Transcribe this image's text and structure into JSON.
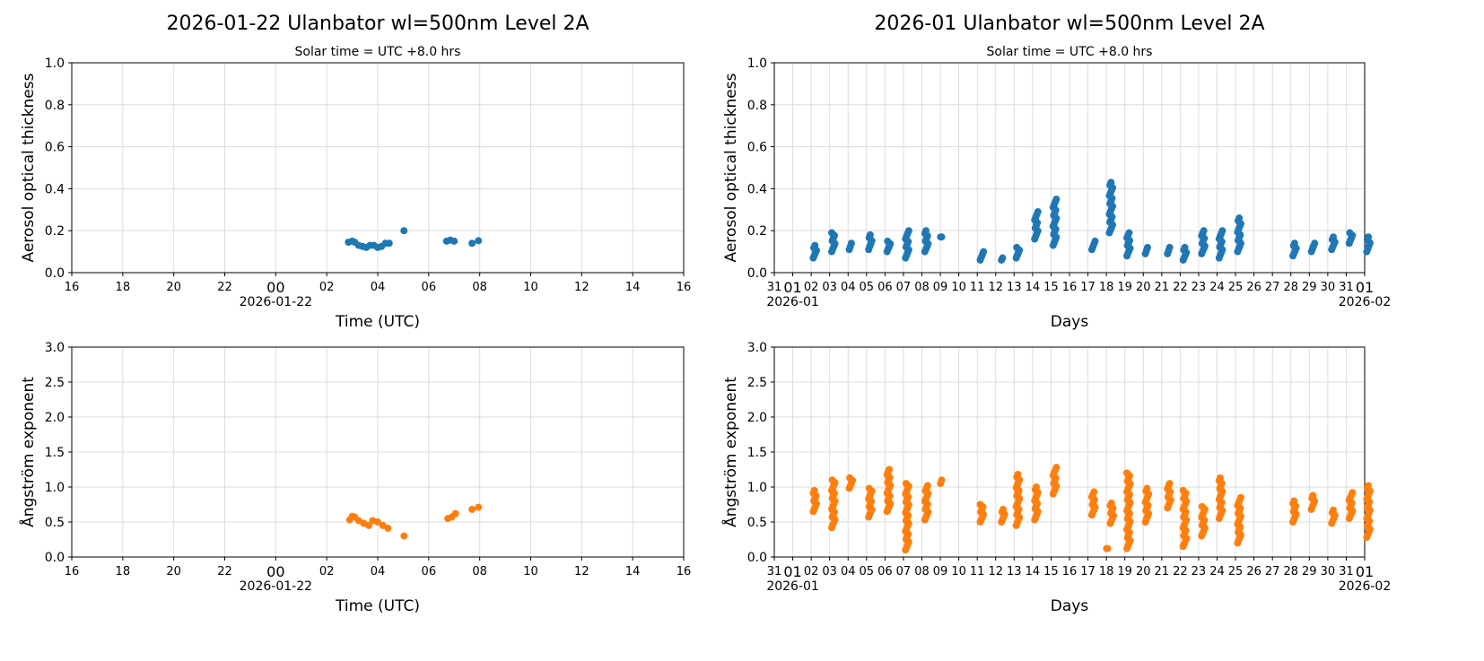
{
  "chart_data": [
    {
      "type": "scatter",
      "title": "2026-01-22  Ulanbator  wl=500nm  Level 2A",
      "subtitle": "Solar time = UTC +8.0 hrs",
      "xlabel": "Time (UTC)",
      "ylabel": "Aerosol optical thickness",
      "xlim": [
        "2026-01-21 16:00",
        "2026-01-22 16:00"
      ],
      "ylim": [
        0,
        1.0
      ],
      "yticks": [
        "0.0",
        "0.2",
        "0.4",
        "0.6",
        "0.8",
        "1.0"
      ],
      "xticks": [
        "16",
        "18",
        "20",
        "22",
        "00",
        "02",
        "04",
        "06",
        "08",
        "10",
        "12",
        "14",
        "16"
      ],
      "xdate_label": "2026-01-22",
      "grid": true,
      "color": "#1f77b4",
      "points_hours_utc": [
        [
          2.85,
          0.145
        ],
        [
          3.0,
          0.15
        ],
        [
          3.1,
          0.145
        ],
        [
          3.25,
          0.13
        ],
        [
          3.4,
          0.125
        ],
        [
          3.55,
          0.12
        ],
        [
          3.7,
          0.13
        ],
        [
          3.85,
          0.13
        ],
        [
          4.0,
          0.12
        ],
        [
          4.15,
          0.125
        ],
        [
          4.3,
          0.14
        ],
        [
          4.45,
          0.14
        ],
        [
          5.03,
          0.2
        ],
        [
          6.7,
          0.15
        ],
        [
          6.85,
          0.155
        ],
        [
          7.0,
          0.15
        ],
        [
          7.7,
          0.14
        ],
        [
          7.95,
          0.152
        ]
      ]
    },
    {
      "type": "scatter",
      "title": "2026-01  Ulanbator  wl=500nm  Level 2A",
      "subtitle": "Solar time = UTC +8.0 hrs",
      "xlabel": "Days",
      "ylabel": "Aerosol optical thickness",
      "xlim": [
        "2025-12-31",
        "2026-02-01"
      ],
      "ylim": [
        0,
        1.0
      ],
      "yticks": [
        "0.0",
        "0.2",
        "0.4",
        "0.6",
        "0.8",
        "1.0"
      ],
      "xticks": [
        "31",
        "01",
        "02",
        "03",
        "04",
        "05",
        "06",
        "07",
        "08",
        "09",
        "10",
        "11",
        "12",
        "13",
        "14",
        "15",
        "16",
        "17",
        "18",
        "19",
        "20",
        "21",
        "22",
        "23",
        "24",
        "25",
        "26",
        "27",
        "28",
        "29",
        "30",
        "31",
        "01"
      ],
      "xdate_labels": [
        "2026-01",
        "2026-02"
      ],
      "grid": true,
      "color": "#1f77b4",
      "daily_clusters": [
        [
          1.2,
          0.07,
          0.13
        ],
        [
          2.2,
          0.1,
          0.19
        ],
        [
          3.15,
          0.11,
          0.14
        ],
        [
          4.2,
          0.11,
          0.18
        ],
        [
          5.2,
          0.1,
          0.15
        ],
        [
          6.2,
          0.07,
          0.2
        ],
        [
          7.25,
          0.1,
          0.2
        ],
        [
          8.1,
          0.17,
          0.17
        ],
        [
          10.25,
          0.06,
          0.1
        ],
        [
          11.4,
          0.06,
          0.07
        ],
        [
          12.2,
          0.07,
          0.12
        ],
        [
          13.2,
          0.16,
          0.29
        ],
        [
          14.2,
          0.13,
          0.35
        ],
        [
          16.3,
          0.11,
          0.15
        ],
        [
          17.25,
          0.19,
          0.43
        ],
        [
          18.2,
          0.08,
          0.19
        ],
        [
          19.2,
          0.09,
          0.12
        ],
        [
          20.4,
          0.09,
          0.12
        ],
        [
          21.25,
          0.06,
          0.12
        ],
        [
          22.25,
          0.09,
          0.2
        ],
        [
          23.2,
          0.07,
          0.2
        ],
        [
          24.2,
          0.1,
          0.26
        ],
        [
          27.2,
          0.08,
          0.14
        ],
        [
          28.2,
          0.1,
          0.14
        ],
        [
          29.3,
          0.11,
          0.17
        ],
        [
          30.25,
          0.14,
          0.19
        ],
        [
          31.2,
          0.1,
          0.17
        ]
      ]
    },
    {
      "type": "scatter",
      "xlabel": "Time (UTC)",
      "ylabel": "Ångström exponent",
      "xlim": [
        "2026-01-21 16:00",
        "2026-01-22 16:00"
      ],
      "ylim": [
        0,
        3.0
      ],
      "yticks": [
        "0.0",
        "0.5",
        "1.0",
        "1.5",
        "2.0",
        "2.5",
        "3.0"
      ],
      "xticks": [
        "16",
        "18",
        "20",
        "22",
        "00",
        "02",
        "04",
        "06",
        "08",
        "10",
        "12",
        "14",
        "16"
      ],
      "xdate_label": "2026-01-22",
      "grid": true,
      "color": "#ff7f0e",
      "points_hours_utc": [
        [
          2.9,
          0.53
        ],
        [
          3.0,
          0.58
        ],
        [
          3.1,
          0.57
        ],
        [
          3.25,
          0.52
        ],
        [
          3.45,
          0.48
        ],
        [
          3.65,
          0.45
        ],
        [
          3.8,
          0.52
        ],
        [
          4.0,
          0.5
        ],
        [
          4.2,
          0.45
        ],
        [
          4.4,
          0.41
        ],
        [
          5.03,
          0.3
        ],
        [
          6.75,
          0.55
        ],
        [
          6.9,
          0.57
        ],
        [
          7.05,
          0.62
        ],
        [
          7.7,
          0.68
        ],
        [
          7.95,
          0.71
        ]
      ]
    },
    {
      "type": "scatter",
      "xlabel": "Days",
      "ylabel": "Ångström exponent",
      "xlim": [
        "2025-12-31",
        "2026-02-01"
      ],
      "ylim": [
        0,
        3.0
      ],
      "yticks": [
        "0.0",
        "0.5",
        "1.0",
        "1.5",
        "2.0",
        "2.5",
        "3.0"
      ],
      "xticks": [
        "31",
        "01",
        "02",
        "03",
        "04",
        "05",
        "06",
        "07",
        "08",
        "09",
        "10",
        "11",
        "12",
        "13",
        "14",
        "15",
        "16",
        "17",
        "18",
        "19",
        "20",
        "21",
        "22",
        "23",
        "24",
        "25",
        "26",
        "27",
        "28",
        "29",
        "30",
        "31",
        "01"
      ],
      "xdate_labels": [
        "2026-01",
        "2026-02"
      ],
      "grid": true,
      "color": "#ff7f0e",
      "daily_clusters": [
        [
          1.2,
          0.65,
          0.95
        ],
        [
          2.2,
          0.42,
          1.1
        ],
        [
          3.15,
          0.98,
          1.13
        ],
        [
          4.2,
          0.57,
          0.98
        ],
        [
          5.2,
          0.65,
          1.25
        ],
        [
          6.2,
          0.1,
          1.05
        ],
        [
          7.25,
          0.53,
          1.02
        ],
        [
          8.1,
          1.05,
          1.1
        ],
        [
          10.25,
          0.5,
          0.75
        ],
        [
          11.4,
          0.5,
          0.68
        ],
        [
          12.2,
          0.45,
          1.18
        ],
        [
          13.2,
          0.53,
          1.0
        ],
        [
          14.2,
          0.9,
          1.28
        ],
        [
          16.3,
          0.6,
          0.93
        ],
        [
          17.1,
          0.12,
          0.12
        ],
        [
          17.3,
          0.48,
          0.77
        ],
        [
          18.2,
          0.12,
          1.2
        ],
        [
          19.2,
          0.5,
          0.98
        ],
        [
          20.4,
          0.7,
          1.05
        ],
        [
          21.25,
          0.15,
          0.95
        ],
        [
          22.25,
          0.3,
          0.72
        ],
        [
          23.2,
          0.55,
          1.13
        ],
        [
          24.2,
          0.2,
          0.85
        ],
        [
          27.2,
          0.5,
          0.8
        ],
        [
          28.2,
          0.68,
          0.88
        ],
        [
          29.3,
          0.48,
          0.67
        ],
        [
          30.25,
          0.55,
          0.92
        ],
        [
          31.2,
          0.28,
          1.02
        ]
      ]
    }
  ]
}
